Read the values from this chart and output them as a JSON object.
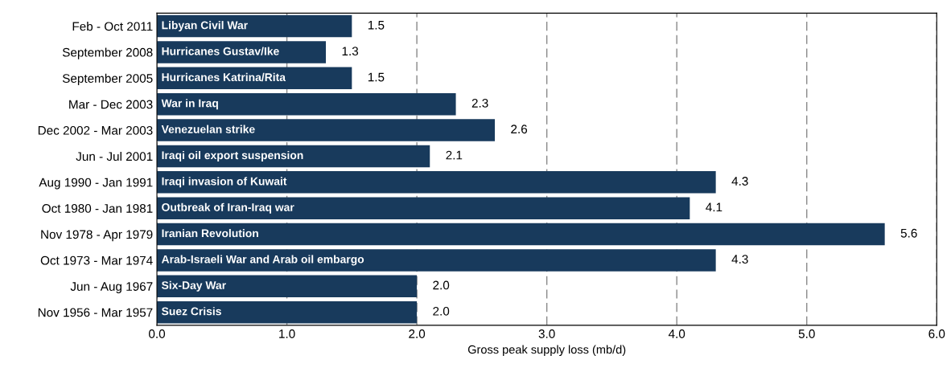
{
  "chart_data": {
    "type": "bar",
    "orientation": "horizontal",
    "xlabel": "Gross peak supply loss (mb/d)",
    "categories": [
      "Feb - Oct 2011",
      "September 2008",
      "September 2005",
      "Mar - Dec 2003",
      "Dec 2002 - Mar 2003",
      "Jun - Jul 2001",
      "Aug 1990 - Jan 1991",
      "Oct 1980 - Jan 1981",
      "Nov 1978 - Apr 1979",
      "Oct 1973 - Mar 1974",
      "Jun - Aug 1967",
      "Nov 1956 - Mar 1957"
    ],
    "values": [
      1.5,
      1.3,
      1.5,
      2.3,
      2.6,
      2.1,
      4.3,
      4.1,
      5.6,
      4.3,
      2.0,
      2.0
    ],
    "value_labels": [
      "1.5",
      "1.3",
      "1.5",
      "2.3",
      "2.6",
      "2.1",
      "4.3",
      "4.1",
      "5.6",
      "4.3",
      "2.0",
      "2.0"
    ],
    "color": "#183a5c",
    "xlim": [
      0,
      6
    ],
    "xticks": [
      {
        "value": 0,
        "label": "0.0"
      },
      {
        "value": 1,
        "label": "1.0"
      },
      {
        "value": 2,
        "label": "2.0"
      },
      {
        "value": 3,
        "label": "3.0"
      },
      {
        "value": 4,
        "label": "4.0"
      },
      {
        "value": 5,
        "label": "5.0"
      },
      {
        "value": 6,
        "label": "6.0"
      }
    ],
    "grid": "x",
    "annotations": [
      {
        "text": "Libyan Civil War",
        "y": "Feb - Oct 2011"
      },
      {
        "text": "Hurricanes Gustav/Ike",
        "y": "September 2008"
      },
      {
        "text": "Hurricanes Katrina/Rita",
        "y": "September 2005"
      },
      {
        "text": "War in Iraq",
        "y": "Mar - Dec 2003"
      },
      {
        "text": "Venezuelan strike",
        "y": "Dec 2002 - Mar 2003"
      },
      {
        "text": "Iraqi oil export suspension",
        "y": "Jun - Jul 2001"
      },
      {
        "text": "Iraqi invasion of Kuwait",
        "y": "Aug 1990 - Jan 1991"
      },
      {
        "text": "Outbreak of Iran-Iraq war",
        "y": "Oct 1980 - Jan 1981"
      },
      {
        "text": "Iranian Revolution",
        "y": "Nov 1978 - Apr 1979"
      },
      {
        "text": "Arab-Israeli War and Arab oil embargo",
        "y": "Oct 1973 - Mar 1974"
      },
      {
        "text": "Six-Day War",
        "y": "Jun - Aug 1967"
      },
      {
        "text": "Suez Crisis",
        "y": "Nov 1956 - Mar 1957"
      }
    ]
  }
}
